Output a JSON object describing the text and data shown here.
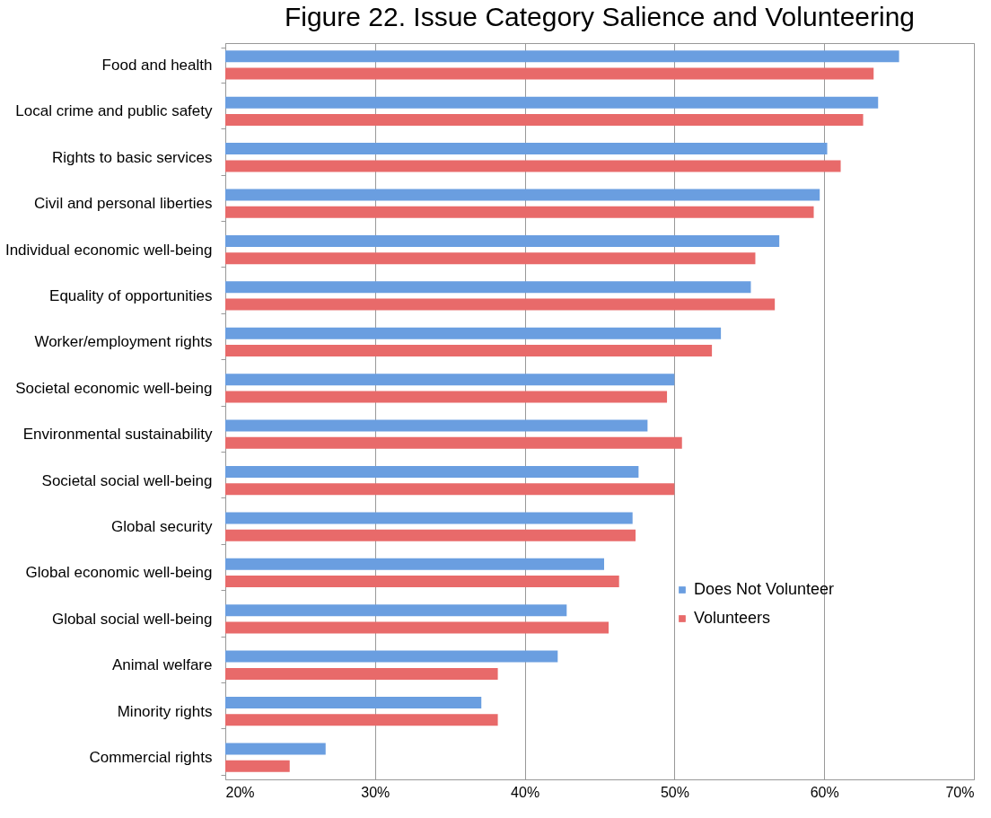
{
  "chart_data": {
    "type": "bar",
    "orientation": "horizontal",
    "title": "Figure 22. Issue Category Salience and Volunteering",
    "categories": [
      "Food and health",
      "Local crime and public safety",
      "Rights to basic services",
      "Civil and personal liberties",
      "Individual economic well-being",
      "Equality of opportunities",
      "Worker/employment rights",
      "Societal economic well-being",
      "Environmental sustainability",
      "Societal social well-being",
      "Global security",
      "Global economic well-being",
      "Global social well-being",
      "Animal welfare",
      "Minority rights",
      "Commercial rights"
    ],
    "series": [
      {
        "name": "Does Not Volunteer",
        "color": "#6a9ee0",
        "values": [
          65.0,
          63.6,
          60.2,
          59.7,
          57.0,
          55.1,
          53.1,
          50.0,
          48.2,
          47.6,
          47.2,
          45.3,
          42.8,
          42.2,
          37.1,
          26.7
        ]
      },
      {
        "name": "Volunteers",
        "color": "#e86a6a",
        "values": [
          63.3,
          62.6,
          61.1,
          59.3,
          55.4,
          56.7,
          52.5,
          49.5,
          50.5,
          50.0,
          47.4,
          46.3,
          45.6,
          38.2,
          38.2,
          24.3
        ]
      }
    ],
    "xlim": [
      20,
      70
    ],
    "xticks": [
      {
        "value": 20,
        "label": "20%"
      },
      {
        "value": 30,
        "label": "30%"
      },
      {
        "value": 40,
        "label": "40%"
      },
      {
        "value": 50,
        "label": "50%"
      },
      {
        "value": 60,
        "label": "60%"
      },
      {
        "value": 70,
        "label": "70%"
      }
    ],
    "grid": "x",
    "legend": "bottom right"
  }
}
